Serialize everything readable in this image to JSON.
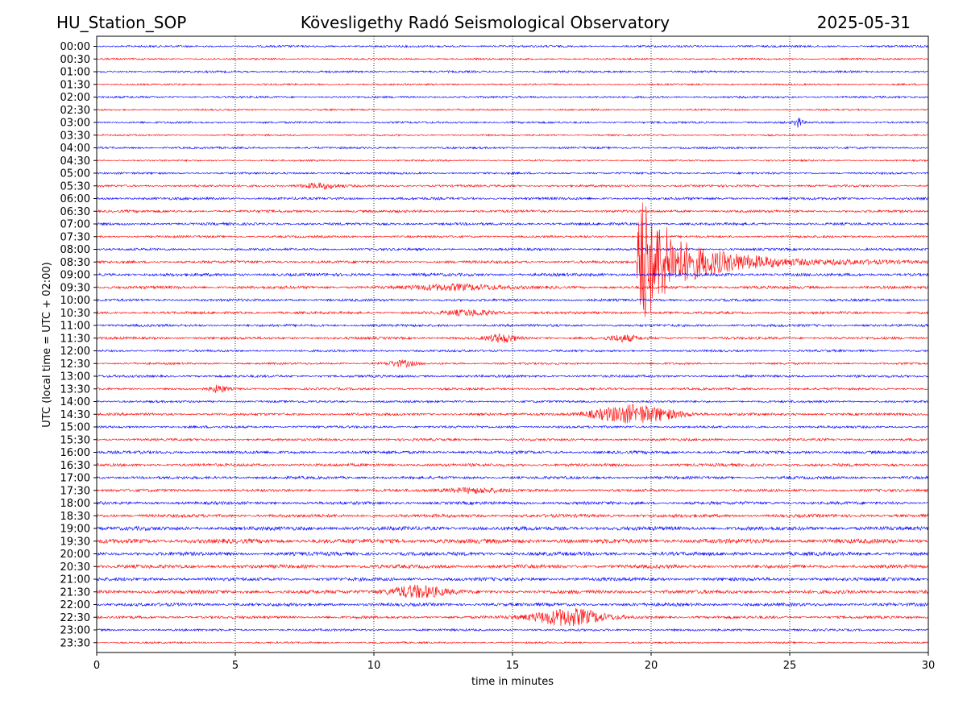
{
  "header": {
    "station": "HU_Station_SOP",
    "title": "Kövesligethy Radó Seismological Observatory",
    "date": "2025-05-31"
  },
  "chart_data": {
    "type": "line",
    "title": "Kövesligethy Radó Seismological Observatory",
    "xlabel": "time in minutes",
    "ylabel": "UTC (local time = UTC + 02:00)",
    "xlim": [
      0,
      30
    ],
    "xticks": [
      0,
      5,
      10,
      15,
      20,
      25,
      30
    ],
    "grid": "vertical dotted at x ticks",
    "row_labels": [
      "00:00",
      "00:30",
      "01:00",
      "01:30",
      "02:00",
      "02:30",
      "03:00",
      "03:30",
      "04:00",
      "04:30",
      "05:00",
      "05:30",
      "06:00",
      "06:30",
      "07:00",
      "07:30",
      "08:00",
      "08:30",
      "09:00",
      "09:30",
      "10:00",
      "10:30",
      "11:00",
      "11:30",
      "12:00",
      "12:30",
      "13:00",
      "13:30",
      "14:00",
      "14:30",
      "15:00",
      "15:30",
      "16:00",
      "16:30",
      "17:00",
      "17:30",
      "18:00",
      "18:30",
      "19:00",
      "19:30",
      "20:00",
      "20:30",
      "21:00",
      "21:30",
      "22:00",
      "22:30",
      "23:00",
      "23:30"
    ],
    "colors": [
      "#0000ff",
      "#ff0000"
    ],
    "noise_levels": [
      1.2,
      1.0,
      1.2,
      1.0,
      1.2,
      1.0,
      1.2,
      1.0,
      1.2,
      1.0,
      1.2,
      1.3,
      1.5,
      1.5,
      1.5,
      1.3,
      1.4,
      1.6,
      1.8,
      1.7,
      1.5,
      1.5,
      1.5,
      1.5,
      1.3,
      1.2,
      1.4,
      1.3,
      1.3,
      1.5,
      1.4,
      1.4,
      1.7,
      1.7,
      1.6,
      1.6,
      1.8,
      1.9,
      2.3,
      2.6,
      2.2,
      2.1,
      2.0,
      2.1,
      1.9,
      1.6,
      1.3,
      1.0
    ],
    "events": [
      {
        "row": "03:00",
        "minute": 25.3,
        "amplitude": 0.5,
        "duration": 0.3
      },
      {
        "row": "05:30",
        "minute": 8.0,
        "amplitude": 0.25,
        "duration": 1.5
      },
      {
        "row": "08:30",
        "minute": 19.5,
        "amplitude": 6.0,
        "duration": 10.5,
        "kind": "earthquake"
      },
      {
        "row": "09:30",
        "minute": 13.0,
        "amplitude": 0.3,
        "duration": 3.0
      },
      {
        "row": "10:30",
        "minute": 13.5,
        "amplitude": 0.25,
        "duration": 2.0
      },
      {
        "row": "11:30",
        "minute": 14.6,
        "amplitude": 0.4,
        "duration": 1.0
      },
      {
        "row": "11:30",
        "minute": 19.0,
        "amplitude": 0.3,
        "duration": 1.0
      },
      {
        "row": "12:30",
        "minute": 11.0,
        "amplitude": 0.3,
        "duration": 1.0
      },
      {
        "row": "13:30",
        "minute": 4.4,
        "amplitude": 0.35,
        "duration": 0.6
      },
      {
        "row": "14:30",
        "minute": 19.4,
        "amplitude": 0.9,
        "duration": 3.0
      },
      {
        "row": "17:30",
        "minute": 13.5,
        "amplitude": 0.25,
        "duration": 2.0
      },
      {
        "row": "21:30",
        "minute": 11.5,
        "amplitude": 0.6,
        "duration": 2.0
      },
      {
        "row": "22:30",
        "minute": 17.0,
        "amplitude": 0.9,
        "duration": 2.5
      }
    ]
  }
}
